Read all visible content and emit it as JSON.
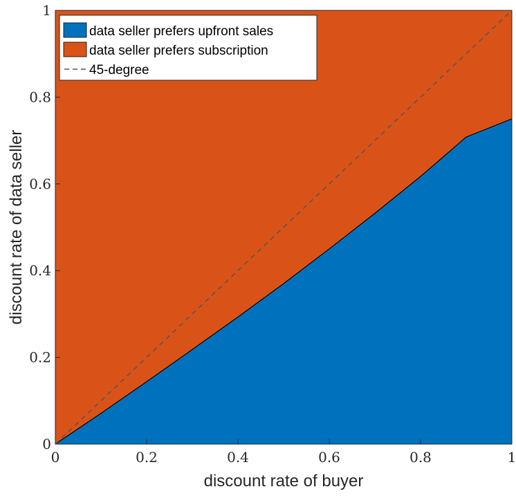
{
  "chart_data": {
    "type": "area",
    "title": "",
    "xlabel": "discount rate of buyer",
    "ylabel": "discount rate of data seller",
    "xlim": [
      0,
      1
    ],
    "ylim": [
      0,
      1
    ],
    "x_ticks": [
      "0",
      "0.2",
      "0.4",
      "0.6",
      "0.8",
      "1"
    ],
    "y_ticks": [
      "0",
      "0.2",
      "0.4",
      "0.6",
      "0.8",
      "1"
    ],
    "grid": false,
    "legend_position": "top-left",
    "boundary": {
      "x": [
        0,
        0.1,
        0.2,
        0.3,
        0.4,
        0.5,
        0.6,
        0.7,
        0.8,
        0.9,
        1.0
      ],
      "y": [
        0,
        0.071,
        0.144,
        0.218,
        0.293,
        0.37,
        0.45,
        0.532,
        0.617,
        0.708,
        0.75
      ]
    },
    "series": [
      {
        "name": "data seller prefers upfront sales",
        "color": "#0072BD",
        "region": "below-boundary"
      },
      {
        "name": "data seller prefers subscription",
        "color": "#D95319",
        "region": "above-boundary"
      },
      {
        "name": "45-degree",
        "color": "#555555",
        "style": "dashed",
        "x": [
          0,
          1
        ],
        "y": [
          0,
          1
        ]
      }
    ]
  }
}
